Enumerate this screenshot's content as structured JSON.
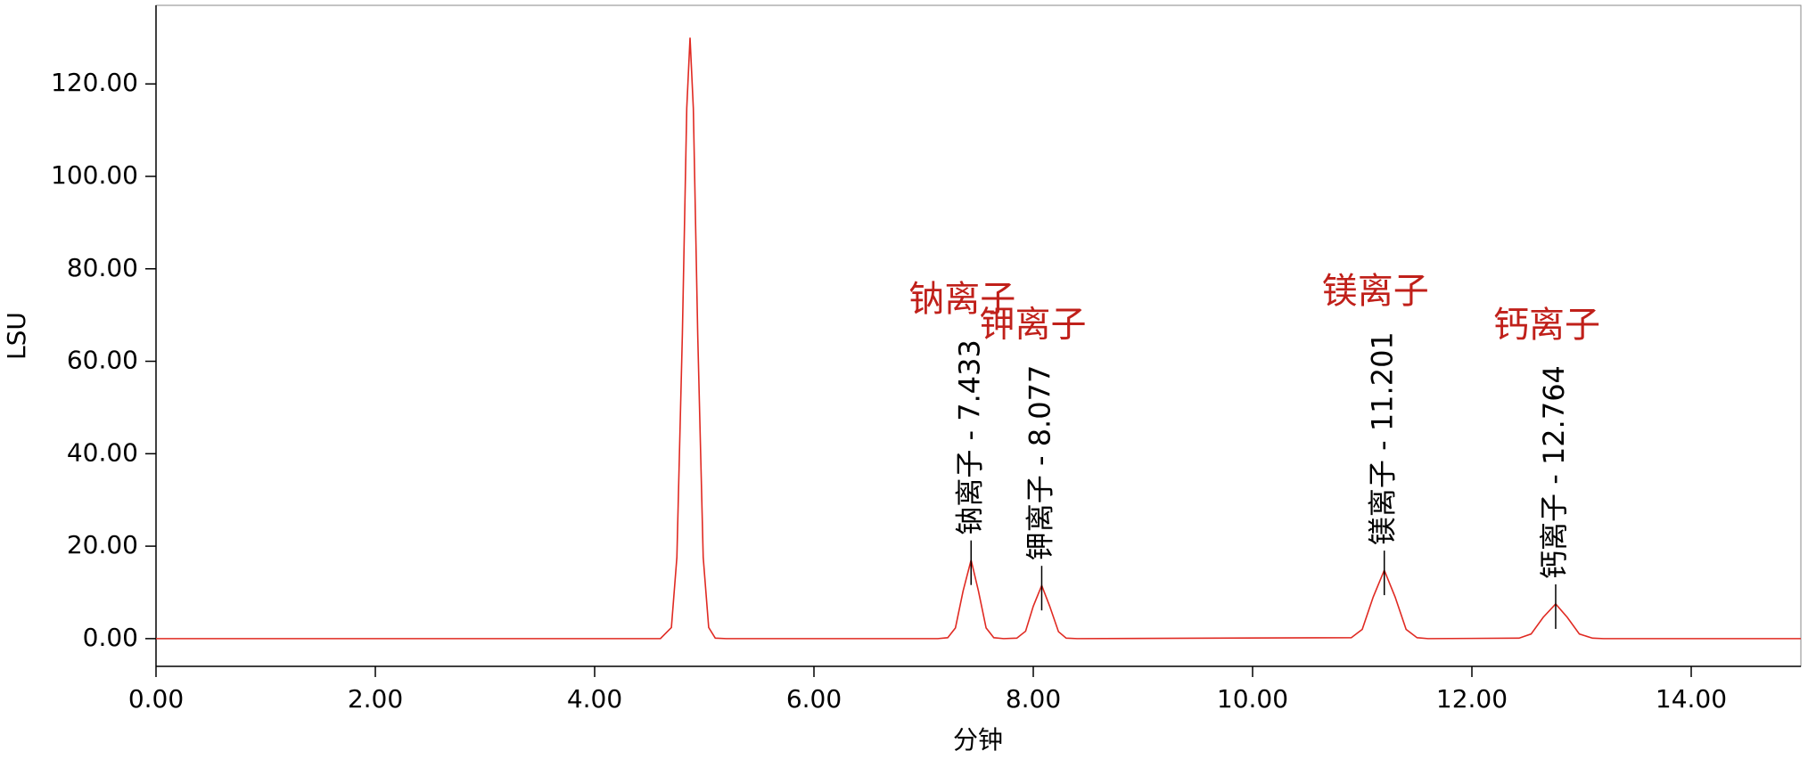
{
  "chart_data": {
    "type": "line",
    "x_label": "分钟",
    "y_label": "LSU",
    "color": "#e02a22",
    "xlim": [
      0,
      15
    ],
    "ylim": [
      -6,
      137
    ],
    "xticks": [
      {
        "value": 0,
        "label": "0.00"
      },
      {
        "value": 2,
        "label": "2.00"
      },
      {
        "value": 4,
        "label": "4.00"
      },
      {
        "value": 6,
        "label": "6.00"
      },
      {
        "value": 8,
        "label": "8.00"
      },
      {
        "value": 10,
        "label": "10.00"
      },
      {
        "value": 12,
        "label": "12.00"
      },
      {
        "value": 14,
        "label": "14.00"
      }
    ],
    "yticks": [
      {
        "value": 0,
        "label": "0.00"
      },
      {
        "value": 20,
        "label": "20.00"
      },
      {
        "value": 40,
        "label": "40.00"
      },
      {
        "value": 60,
        "label": "60.00"
      },
      {
        "value": 80,
        "label": "80.00"
      },
      {
        "value": 100,
        "label": "100.00"
      },
      {
        "value": 120,
        "label": "120.00"
      }
    ],
    "x": [
      0,
      4.6,
      4.7,
      4.75,
      4.8,
      4.84,
      4.87,
      4.9,
      4.94,
      4.99,
      5.04,
      5.1,
      5.2,
      7.13,
      7.22,
      7.29,
      7.36,
      7.433,
      7.5,
      7.57,
      7.64,
      7.73,
      7.85,
      7.93,
      8.0,
      8.077,
      8.15,
      8.23,
      8.3,
      8.4,
      10.9,
      11.0,
      11.1,
      11.201,
      11.3,
      11.4,
      11.5,
      11.6,
      12.43,
      12.54,
      12.65,
      12.764,
      12.87,
      12.98,
      13.1,
      13.2,
      15
    ],
    "values": [
      0,
      0,
      2.4,
      17.6,
      65.8,
      114.7,
      130,
      114.7,
      65.8,
      17.6,
      2.4,
      0.1,
      0,
      0,
      0.2,
      2.3,
      10.3,
      17,
      10.3,
      2.3,
      0.2,
      0,
      0.1,
      1.6,
      7,
      11.5,
      7,
      1.5,
      0.1,
      0,
      0.2,
      2,
      9,
      14.8,
      9,
      2,
      0.2,
      0,
      0.1,
      1,
      4.6,
      7.5,
      4.6,
      1,
      0.1,
      0,
      0
    ],
    "annotations": [
      {
        "x": 7.433,
        "text": "钠离子 - 7.433",
        "title": "钠离子"
      },
      {
        "x": 8.077,
        "text": "钾离子 - 8.077",
        "title": "钾离子"
      },
      {
        "x": 11.201,
        "text": "镁离子 - 11.201",
        "title": "镁离子"
      },
      {
        "x": 12.764,
        "text": "钙离子 - 12.764",
        "title": "钙离子"
      }
    ]
  }
}
